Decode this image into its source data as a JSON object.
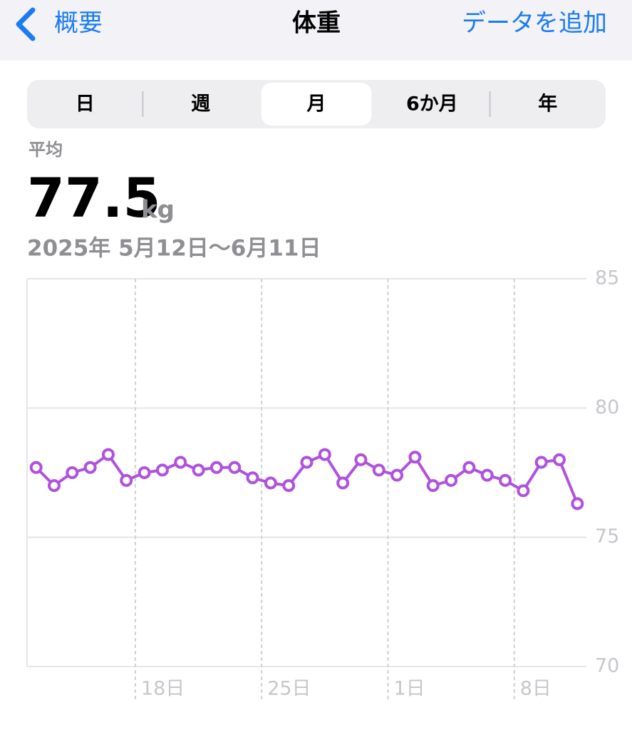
{
  "nav": {
    "back": "概要",
    "title": "体重",
    "action": "データを追加"
  },
  "segments": {
    "items": [
      "日",
      "週",
      "月",
      "6か月",
      "年"
    ],
    "selected": 2
  },
  "summary": {
    "label": "平均",
    "value": 77.5,
    "unit": "kg",
    "range": "2025年 5月12日～6月11日"
  },
  "chart_data": {
    "type": "line",
    "categories": [
      null,
      null,
      null,
      null,
      null,
      null,
      "18日",
      null,
      null,
      null,
      null,
      null,
      null,
      "25日",
      null,
      null,
      null,
      null,
      null,
      null,
      "1日",
      null,
      null,
      null,
      null,
      null,
      null,
      "8日",
      null,
      null,
      null
    ],
    "series": [
      {
        "name": "体重",
        "color": "#af52de",
        "values": [
          77.7,
          77.0,
          77.5,
          77.7,
          78.2,
          77.2,
          77.5,
          77.6,
          77.9,
          77.6,
          77.7,
          77.7,
          77.3,
          77.1,
          77.0,
          77.9,
          78.2,
          77.1,
          78.0,
          77.6,
          77.4,
          78.1,
          77.0,
          77.2,
          77.7,
          77.4,
          77.2,
          76.8,
          77.9,
          78.0,
          76.3
        ]
      }
    ],
    "ylim": [
      70,
      85
    ],
    "yticks": [
      70,
      75,
      80,
      85
    ],
    "grid": true
  }
}
